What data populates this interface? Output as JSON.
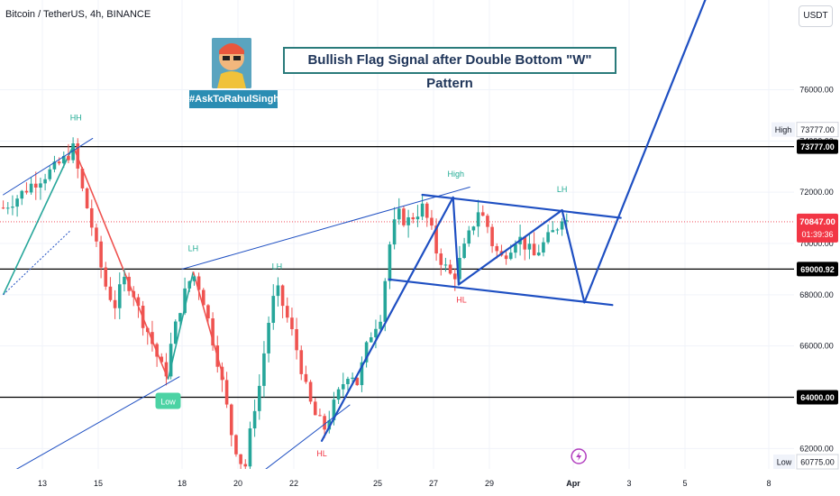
{
  "header": {
    "symbol_title": "Bitcoin / TetherUS, 4h, BINANCE",
    "currency_button": "USDT"
  },
  "logo": {
    "hashtag": "#AskToRahulSingh"
  },
  "headline": "Bullish Flag Signal after Double Bottom \"W\" Pattern",
  "colors": {
    "bull": "#26a69a",
    "bear": "#ef5350",
    "trend_blue": "#1e4fc2",
    "annot_green": "#22ab94",
    "annot_red": "#f23645",
    "level_line": "#000000",
    "current_price": "#f23645"
  },
  "chart_data": {
    "type": "candlestick",
    "symbol": "Bitcoin / TetherUS",
    "interval": "4h",
    "exchange": "BINANCE",
    "ylim": [
      60500,
      79500
    ],
    "y_ticks": [
      62000,
      64000,
      66000,
      68000,
      70000,
      72000,
      74000,
      76000
    ],
    "y_tick_labels": [
      "62000.00",
      "64000.00",
      "66000.00",
      "68000.00",
      "70000.00",
      "72000.00",
      "74000.00",
      "76000.00"
    ],
    "x_ticks": [
      {
        "day": 13,
        "label": "13"
      },
      {
        "day": 15,
        "label": "15"
      },
      {
        "day": 18,
        "label": "18"
      },
      {
        "day": 20,
        "label": "20"
      },
      {
        "day": 22,
        "label": "22"
      },
      {
        "day": 25,
        "label": "25"
      },
      {
        "day": 27,
        "label": "27"
      },
      {
        "day": 29,
        "label": "29"
      },
      {
        "day": 32,
        "label": "Apr"
      },
      {
        "day": 34,
        "label": "3"
      },
      {
        "day": 36,
        "label": "5"
      },
      {
        "day": 39,
        "label": "8"
      }
    ],
    "horizontal_levels": [
      73777.0,
      69000.92,
      64000.0
    ],
    "level_labels": [
      "73777.00",
      "69000.92",
      "64000.00"
    ],
    "current_price": 70847.0,
    "current_price_label": "70847.00",
    "countdown_label": "01:39:36",
    "high_label": "High",
    "high_value": "73777.00",
    "low_label": "Low",
    "low_value": "60775.00",
    "price_path": [
      [
        11.6,
        71400
      ],
      [
        12.1,
        71800
      ],
      [
        12.6,
        72300
      ],
      [
        13.0,
        72600
      ],
      [
        13.4,
        72900
      ],
      [
        13.8,
        73300
      ],
      [
        14.1,
        73700
      ],
      [
        14.4,
        72200
      ],
      [
        14.7,
        71000
      ],
      [
        15.0,
        69500
      ],
      [
        15.3,
        68200
      ],
      [
        15.6,
        67600
      ],
      [
        15.9,
        68600
      ],
      [
        16.2,
        68300
      ],
      [
        16.5,
        67200
      ],
      [
        16.8,
        66500
      ],
      [
        17.1,
        65600
      ],
      [
        17.4,
        64800
      ],
      [
        17.6,
        66000
      ],
      [
        17.9,
        67400
      ],
      [
        18.2,
        68400
      ],
      [
        18.4,
        68800
      ],
      [
        18.7,
        68100
      ],
      [
        19.0,
        66700
      ],
      [
        19.3,
        65300
      ],
      [
        19.6,
        63600
      ],
      [
        19.8,
        62400
      ],
      [
        20.1,
        61500
      ],
      [
        20.3,
        61300
      ],
      [
        20.5,
        63200
      ],
      [
        20.8,
        64600
      ],
      [
        21.0,
        66300
      ],
      [
        21.2,
        67600
      ],
      [
        21.4,
        68200
      ],
      [
        21.7,
        67300
      ],
      [
        22.0,
        66300
      ],
      [
        22.3,
        65000
      ],
      [
        22.5,
        64000
      ],
      [
        22.8,
        63200
      ],
      [
        23.1,
        62800
      ],
      [
        23.4,
        63600
      ],
      [
        23.7,
        64400
      ],
      [
        24.0,
        65100
      ],
      [
        24.3,
        64500
      ],
      [
        24.5,
        65600
      ],
      [
        24.8,
        66600
      ],
      [
        25.1,
        67200
      ],
      [
        25.3,
        68900
      ],
      [
        25.5,
        70500
      ],
      [
        25.8,
        71200
      ],
      [
        26.0,
        70800
      ],
      [
        26.3,
        71100
      ],
      [
        26.6,
        71400
      ],
      [
        26.9,
        70600
      ],
      [
        27.1,
        69700
      ],
      [
        27.4,
        69100
      ],
      [
        27.7,
        68600
      ],
      [
        28.0,
        69500
      ],
      [
        28.3,
        70400
      ],
      [
        28.6,
        71300
      ],
      [
        28.9,
        70800
      ],
      [
        29.1,
        70000
      ],
      [
        29.4,
        69400
      ],
      [
        29.7,
        69800
      ],
      [
        30.0,
        70300
      ],
      [
        30.3,
        69900
      ],
      [
        30.6,
        69500
      ],
      [
        30.8,
        69800
      ],
      [
        31.1,
        70200
      ],
      [
        31.4,
        70600
      ],
      [
        31.6,
        71100
      ],
      [
        31.8,
        70847
      ]
    ],
    "annotations": [
      {
        "text": "HH",
        "color": "green",
        "x": 14.2,
        "y": 74800
      },
      {
        "text": "High",
        "color": "green",
        "x": 27.8,
        "y": 72600
      },
      {
        "text": "LH",
        "color": "green",
        "x": 31.6,
        "y": 72000
      },
      {
        "text": "LH",
        "color": "green",
        "x": 18.4,
        "y": 69700
      },
      {
        "text": "LH",
        "color": "green",
        "x": 21.4,
        "y": 69000
      },
      {
        "text": "HL",
        "color": "red",
        "x": 28.0,
        "y": 67700
      },
      {
        "text": "HL",
        "color": "red",
        "x": 23.0,
        "y": 61700
      },
      {
        "text": "Low",
        "color": "green-box",
        "x": 17.5,
        "y": 64000
      }
    ],
    "trend_lines": [
      [
        [
          11.6,
          68000
        ],
        [
          14.1,
          73800
        ]
      ],
      [
        [
          14.1,
          73800
        ],
        [
          17.5,
          64700
        ]
      ],
      [
        [
          17.5,
          64700
        ],
        [
          18.4,
          68900
        ]
      ],
      [
        [
          18.4,
          68900
        ],
        [
          19.5,
          64700
        ]
      ],
      [
        [
          11.6,
          68000
        ],
        [
          14.0,
          70500
        ]
      ]
    ],
    "blue_lines": [
      [
        [
          11.6,
          71900
        ],
        [
          14.8,
          74100
        ]
      ],
      [
        [
          11.6,
          60900
        ],
        [
          17.9,
          64800
        ]
      ],
      [
        [
          18.0,
          69000
        ],
        [
          28.3,
          72200
        ]
      ],
      [
        [
          20.4,
          60700
        ],
        [
          24.0,
          63700
        ]
      ],
      [
        [
          23.0,
          62300
        ],
        [
          27.7,
          71800
        ]
      ],
      [
        [
          27.7,
          71800
        ],
        [
          27.9,
          68400
        ]
      ],
      [
        [
          27.9,
          68400
        ],
        [
          31.6,
          71300
        ]
      ],
      [
        [
          31.6,
          71300
        ],
        [
          32.4,
          67700
        ]
      ],
      [
        [
          32.4,
          67700
        ],
        [
          37.2,
          80800
        ]
      ],
      [
        [
          26.6,
          71900
        ],
        [
          33.7,
          71000
        ]
      ],
      [
        [
          25.4,
          68600
        ],
        [
          33.4,
          67600
        ]
      ]
    ]
  }
}
